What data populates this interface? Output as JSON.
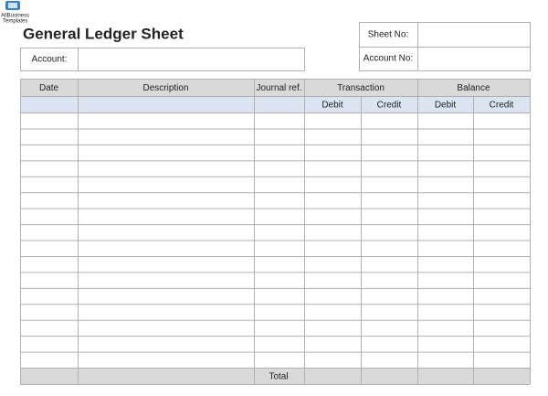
{
  "logo": {
    "line1": "AllBusiness",
    "line2": "Templates"
  },
  "header": {
    "title": "General Ledger Sheet",
    "account_label": "Account:",
    "sheet_no_label": "Sheet No:",
    "account_no_label": "Account No:"
  },
  "table": {
    "columns": [
      "Date",
      "Description",
      "Journal ref.",
      "Transaction",
      "Balance"
    ],
    "subcolumns": [
      "Debit",
      "Credit",
      "Debit",
      "Credit"
    ],
    "total_label": "Total"
  }
}
